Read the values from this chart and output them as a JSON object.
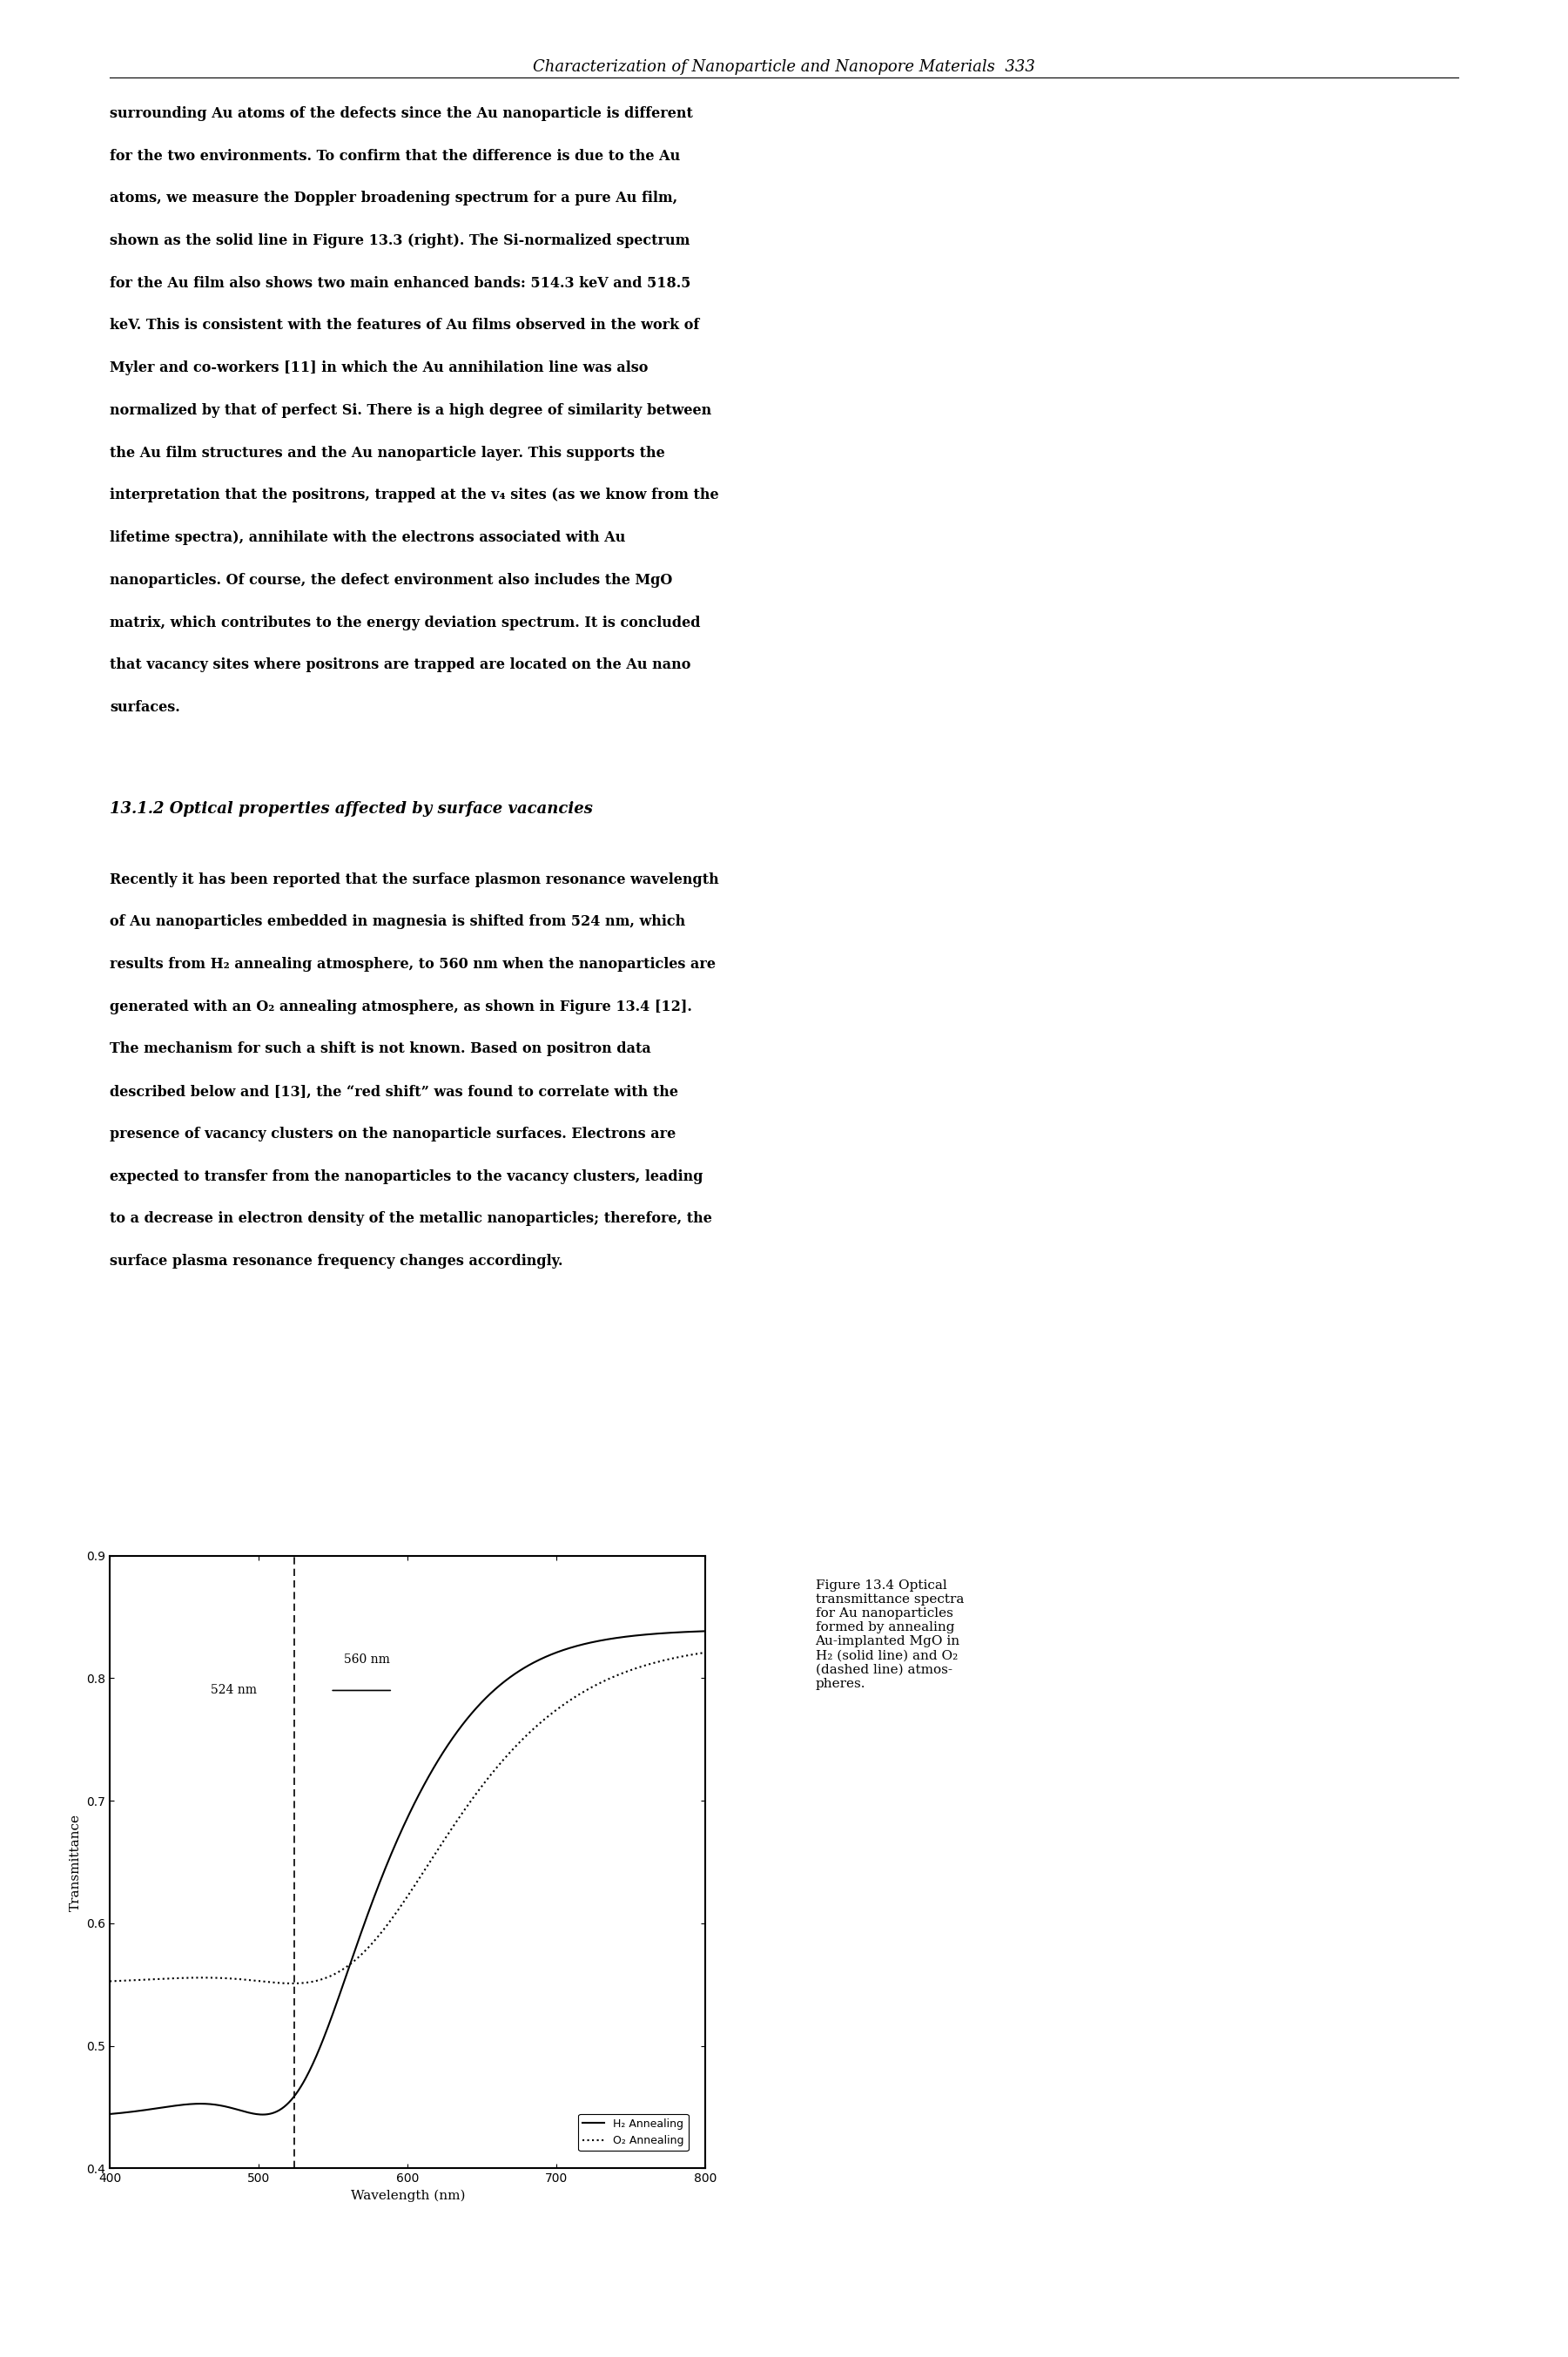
{
  "title": "",
  "xlabel": "Wavelength (nm)",
  "ylabel": "Transmittance",
  "xlim": [
    400,
    800
  ],
  "ylim": [
    0.4,
    0.9
  ],
  "xticks": [
    400,
    500,
    600,
    700,
    800
  ],
  "yticks": [
    0.4,
    0.5,
    0.6,
    0.7,
    0.8,
    0.9
  ],
  "vline_x": 524,
  "vline_label": "524 nm",
  "hline_label": "560 nm",
  "legend_entries": [
    "H₂ Annealing",
    "O₂ Annealing"
  ],
  "figure_text": "Figure 13.4 Optical\ntransmittance spectra\nfor Au nanoparticles\nformed by annealing\nAu-implanted MgO in\nH₂ (solid line) and O₂\n(dashed line) atmos-\npheres.",
  "background_color": "#ffffff",
  "line_color": "#000000",
  "page_header": "Characterization of Nanoparticle and Nanopore Materials  333",
  "body_text_lines": [
    "surrounding Au atoms of the defects since the Au nanoparticle is different",
    "for the two environments. To confirm that the difference is due to the Au",
    "atoms, we measure the Doppler broadening spectrum for a pure Au film,",
    "shown as the solid line in Figure 13.3 (right). The Si-normalized spectrum",
    "for the Au film also shows two main enhanced bands: 514.3 keV and 518.5",
    "keV. This is consistent with the features of Au films observed in the work of",
    "Myler and co-workers [11] in which the Au annihilation line was also",
    "normalized by that of perfect Si. There is a high degree of similarity between",
    "the Au film structures and the Au nanoparticle layer. This supports the",
    "interpretation that the positrons, trapped at the v₄ sites (as we know from the",
    "lifetime spectra), annihilate with the electrons associated with Au",
    "nanoparticles. Of course, the defect environment also includes the MgO",
    "matrix, which contributes to the energy deviation spectrum. It is concluded",
    "that vacancy sites where positrons are trapped are located on the Au nano",
    "surfaces."
  ],
  "section_heading": "13.1.2 Optical properties affected by surface vacancies",
  "paragraph2_lines": [
    "Recently it has been reported that the surface plasmon resonance wavelength",
    "of Au nanoparticles embedded in magnesia is shifted from 524 nm, which",
    "results from H₂ annealing atmosphere, to 560 nm when the nanoparticles are",
    "generated with an O₂ annealing atmosphere, as shown in Figure 13.4 [12].",
    "The mechanism for such a shift is not known. Based on positron data",
    "described below and [13], the “red shift” was found to correlate with the",
    "presence of vacancy clusters on the nanoparticle surfaces. Electrons are",
    "expected to transfer from the nanoparticles to the vacancy clusters, leading",
    "to a decrease in electron density of the metallic nanoparticles; therefore, the",
    "surface plasma resonance frequency changes accordingly."
  ]
}
